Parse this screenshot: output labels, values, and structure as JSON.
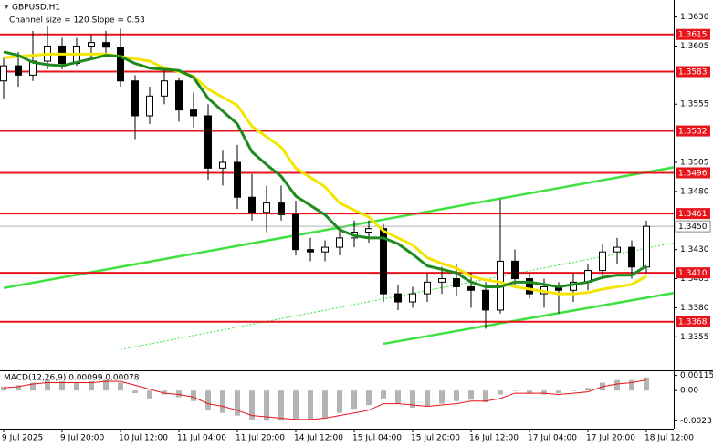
{
  "chart_data": {
    "type": "candlestick",
    "title": "GBPUSD,H1",
    "subtitle": "Channel size = 120 Slope = 0.53",
    "categories": [
      "9 Jul 2025",
      null,
      null,
      null,
      "9 Jul 20:00",
      null,
      null,
      null,
      "10 Jul 12:00",
      null,
      null,
      null,
      "11 Jul 04:00",
      null,
      null,
      null,
      "11 Jul 20:00",
      null,
      null,
      null,
      "14 Jul 12:00",
      null,
      null,
      null,
      "15 Jul 04:00",
      null,
      null,
      null,
      "15 Jul 20:00",
      null,
      null,
      null,
      "16 Jul 12:00",
      null,
      null,
      null,
      "17 Jul 04:00",
      null,
      null,
      null,
      "17 Jul 20:00",
      null,
      null,
      null,
      "18 Jul 12:00"
    ],
    "open": [
      1.3575,
      1.3588,
      1.358,
      1.3592,
      1.3605,
      1.359,
      1.3605,
      1.3608,
      1.3604,
      1.3575,
      1.3545,
      1.3562,
      1.3575,
      1.355,
      1.3545,
      1.35,
      1.3505,
      1.3475,
      1.3462,
      1.347,
      1.346,
      1.343,
      1.3428,
      1.3432,
      1.344,
      1.3445,
      1.3448,
      1.3392,
      1.3385,
      1.3392,
      1.3402,
      1.3405,
      1.3398,
      1.3395,
      1.3378,
      1.342,
      1.3405,
      1.3392,
      1.3398,
      1.3395,
      1.3402,
      1.3412,
      1.3428,
      1.3432,
      1.3415
    ],
    "high": [
      1.3595,
      1.36,
      1.3618,
      1.3622,
      1.3612,
      1.3612,
      1.3615,
      1.3618,
      1.362,
      1.358,
      1.357,
      1.3585,
      1.3578,
      1.3565,
      1.3555,
      1.3515,
      1.352,
      1.3495,
      1.3485,
      1.3485,
      1.3472,
      1.344,
      1.3438,
      1.3448,
      1.3455,
      1.3455,
      1.3452,
      1.34,
      1.3398,
      1.341,
      1.3415,
      1.3418,
      1.341,
      1.3402,
      1.3473,
      1.343,
      1.341,
      1.3405,
      1.3402,
      1.341,
      1.3418,
      1.3435,
      1.344,
      1.3438,
      1.3455
    ],
    "low": [
      1.356,
      1.357,
      1.3575,
      1.3585,
      1.3585,
      1.3588,
      1.3595,
      1.3598,
      1.357,
      1.3525,
      1.3538,
      1.3555,
      1.354,
      1.3535,
      1.349,
      1.3485,
      1.3465,
      1.3455,
      1.3445,
      1.3455,
      1.3425,
      1.342,
      1.342,
      1.3425,
      1.3432,
      1.3436,
      1.3385,
      1.3378,
      1.338,
      1.3385,
      1.3392,
      1.339,
      1.338,
      1.3362,
      1.3375,
      1.3398,
      1.3388,
      1.338,
      1.3375,
      1.3385,
      1.3395,
      1.3405,
      1.3418,
      1.3405,
      1.341
    ],
    "close": [
      1.3588,
      1.358,
      1.3592,
      1.3605,
      1.359,
      1.3605,
      1.3608,
      1.3604,
      1.3575,
      1.3545,
      1.3562,
      1.3575,
      1.355,
      1.3545,
      1.35,
      1.3505,
      1.3475,
      1.3462,
      1.347,
      1.346,
      1.343,
      1.3428,
      1.3432,
      1.344,
      1.3445,
      1.3448,
      1.3392,
      1.3385,
      1.3392,
      1.3402,
      1.3405,
      1.3398,
      1.3395,
      1.3378,
      1.342,
      1.3405,
      1.3392,
      1.3398,
      1.3395,
      1.3402,
      1.3412,
      1.3428,
      1.3432,
      1.3415,
      1.345
    ],
    "ylim": [
      1.3327,
      1.3643
    ],
    "yticks": [
      {
        "value": 1.363,
        "label": "1.3630"
      },
      1.3605,
      1.3555,
      1.3505,
      {
        "value": 1.348,
        "label": "1.3480"
      },
      {
        "value": 1.343,
        "label": "1.3430"
      },
      1.3405,
      {
        "value": 1.338,
        "label": "1.3380"
      },
      1.3355
    ],
    "levels": {
      "color": "#e8141c",
      "values": [
        1.3615,
        1.3583,
        1.3532,
        1.3496,
        1.3461,
        {
          "value": 1.341,
          "label": "1.3410"
        },
        1.3368
      ]
    },
    "current_price": {
      "value": 1.345,
      "label": "1.3450"
    },
    "moving_averages": [
      {
        "color": "#f2e600",
        "values": [
          1.3595,
          1.3596,
          1.3597,
          1.3598,
          1.3598,
          1.3598,
          1.3598,
          1.3598,
          1.3596,
          1.3594,
          1.3592,
          1.3586,
          1.3583,
          1.3579,
          1.3568,
          1.3561,
          1.3554,
          1.3536,
          1.3527,
          1.3518,
          1.35,
          1.3492,
          1.3484,
          1.347,
          1.3464,
          1.3458,
          1.3446,
          1.344,
          1.3434,
          1.3423,
          1.3418,
          1.3414,
          1.3407,
          1.3404,
          1.3402,
          1.3398,
          1.3396,
          1.3394,
          1.3392,
          1.3392,
          1.3393,
          1.3396,
          1.3398,
          1.34,
          1.3407
        ]
      },
      {
        "color": "#1f8a1f",
        "values": [
          1.36,
          1.3597,
          1.3591,
          1.3589,
          1.3588,
          1.3591,
          1.3594,
          1.3597,
          1.3596,
          1.359,
          1.3586,
          1.3585,
          1.3584,
          1.3578,
          1.356,
          1.3549,
          1.3538,
          1.3514,
          1.3503,
          1.3493,
          1.3476,
          1.3468,
          1.346,
          1.3447,
          1.3442,
          1.344,
          1.344,
          1.3435,
          1.3426,
          1.3416,
          1.3413,
          1.341,
          1.3402,
          1.3398,
          1.3398,
          1.3402,
          1.3402,
          1.34,
          1.3398,
          1.34,
          1.3402,
          1.3406,
          1.3408,
          1.3408,
          1.3416
        ]
      }
    ],
    "trend_lines": [
      {
        "color": "#3ee23e",
        "x": [
          0,
          46
        ],
        "values": [
          1.3397,
          1.3501
        ]
      },
      {
        "color": "#3ee23e",
        "x": [
          26,
          46
        ],
        "values": [
          1.3349,
          1.3393
        ]
      },
      {
        "color": "#3ee23e",
        "dashed": true,
        "x": [
          8,
          46
        ],
        "values": [
          1.3344,
          1.3436
        ]
      }
    ],
    "macd": {
      "label": "MACD(12,26,9) 0.00099 0.00078",
      "histogram_color": "#b4b4b4",
      "signal_color": "#e8141c",
      "histogram": [
        0.0003,
        0.0004,
        0.0006,
        0.0008,
        0.0007,
        0.0006,
        0.0007,
        0.0008,
        0.0006,
        -0.0002,
        -0.0006,
        -0.0003,
        -0.0005,
        -0.0008,
        -0.0015,
        -0.0017,
        -0.0019,
        -0.0022,
        -0.0023,
        -0.0023,
        -0.0022,
        -0.0022,
        -0.0021,
        -0.0017,
        -0.0014,
        -0.0011,
        -0.0006,
        -0.001,
        -0.0013,
        -0.0012,
        -0.001,
        -0.0008,
        -0.0007,
        -0.0009,
        -0.0003,
        0,
        -0.0002,
        -0.0003,
        -0.0002,
        0,
        0.0002,
        0.0006,
        0.0008,
        0.0008,
        0.001
      ],
      "signal": [
        0.0002,
        0.0003,
        0.0005,
        0.0006,
        0.0006,
        0.0006,
        0.0006,
        0.0007,
        0.0007,
        0.0004,
        0.0001,
        -0.0002,
        -0.0003,
        -0.0005,
        -0.001,
        -0.0012,
        -0.0015,
        -0.0019,
        -0.002,
        -0.0021,
        -0.0022,
        -0.0022,
        -0.0021,
        -0.0019,
        -0.0017,
        -0.0015,
        -0.001,
        -0.001,
        -0.0011,
        -0.0012,
        -0.0011,
        -0.001,
        -0.0008,
        -0.0008,
        -0.0006,
        -0.0002,
        -0.0002,
        -0.0002,
        -0.0003,
        -0.0002,
        -0.0001,
        0.0003,
        0.0005,
        0.0006,
        0.0008
      ],
      "ylim": [
        -0.0029,
        0.0014
      ],
      "yticks": [
        0.00115,
        {
          "value": 0,
          "label": "0.00"
        },
        -0.0023
      ]
    }
  }
}
